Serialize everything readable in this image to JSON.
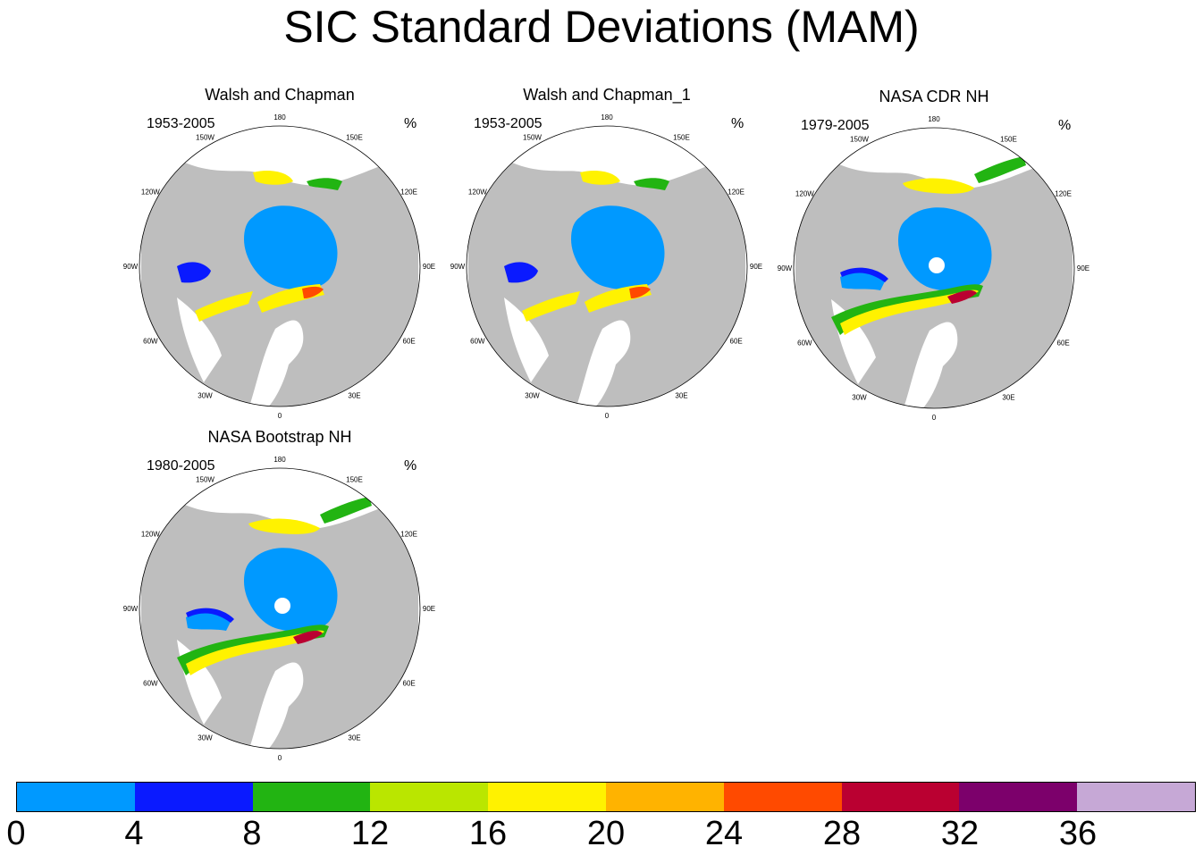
{
  "title": "SIC Standard Deviations (MAM)",
  "chart_data": {
    "type": "heatmap",
    "title": "SIC Standard Deviations (MAM)",
    "projection": "north-polar-stereographic",
    "panels": [
      {
        "title": "Walsh and Chapman",
        "period": "1953-2005",
        "unit": "%"
      },
      {
        "title": "Walsh and Chapman_1",
        "period": "1953-2005",
        "unit": "%"
      },
      {
        "title": "NASA CDR NH",
        "period": "1979-2005",
        "unit": "%"
      },
      {
        "title": "NASA Bootstrap NH",
        "period": "1980-2005",
        "unit": "%"
      }
    ],
    "longitude_labels": [
      "180",
      "150E",
      "120E",
      "90E",
      "60E",
      "30E",
      "0",
      "30W",
      "60W",
      "90W",
      "120W",
      "150W"
    ],
    "colorbar": {
      "levels": [
        0,
        4,
        8,
        12,
        16,
        20,
        24,
        28,
        32,
        36
      ],
      "tick_labels": [
        "0",
        "4",
        "8",
        "12",
        "16",
        "20",
        "24",
        "28",
        "32",
        "36"
      ],
      "colors": [
        "#0099FF",
        "#0A1AFF",
        "#22B412",
        "#BAE600",
        "#FFF200",
        "#FFB300",
        "#FF4A00",
        "#BA0031",
        "#7C006B",
        "#C6A8D6"
      ]
    }
  }
}
